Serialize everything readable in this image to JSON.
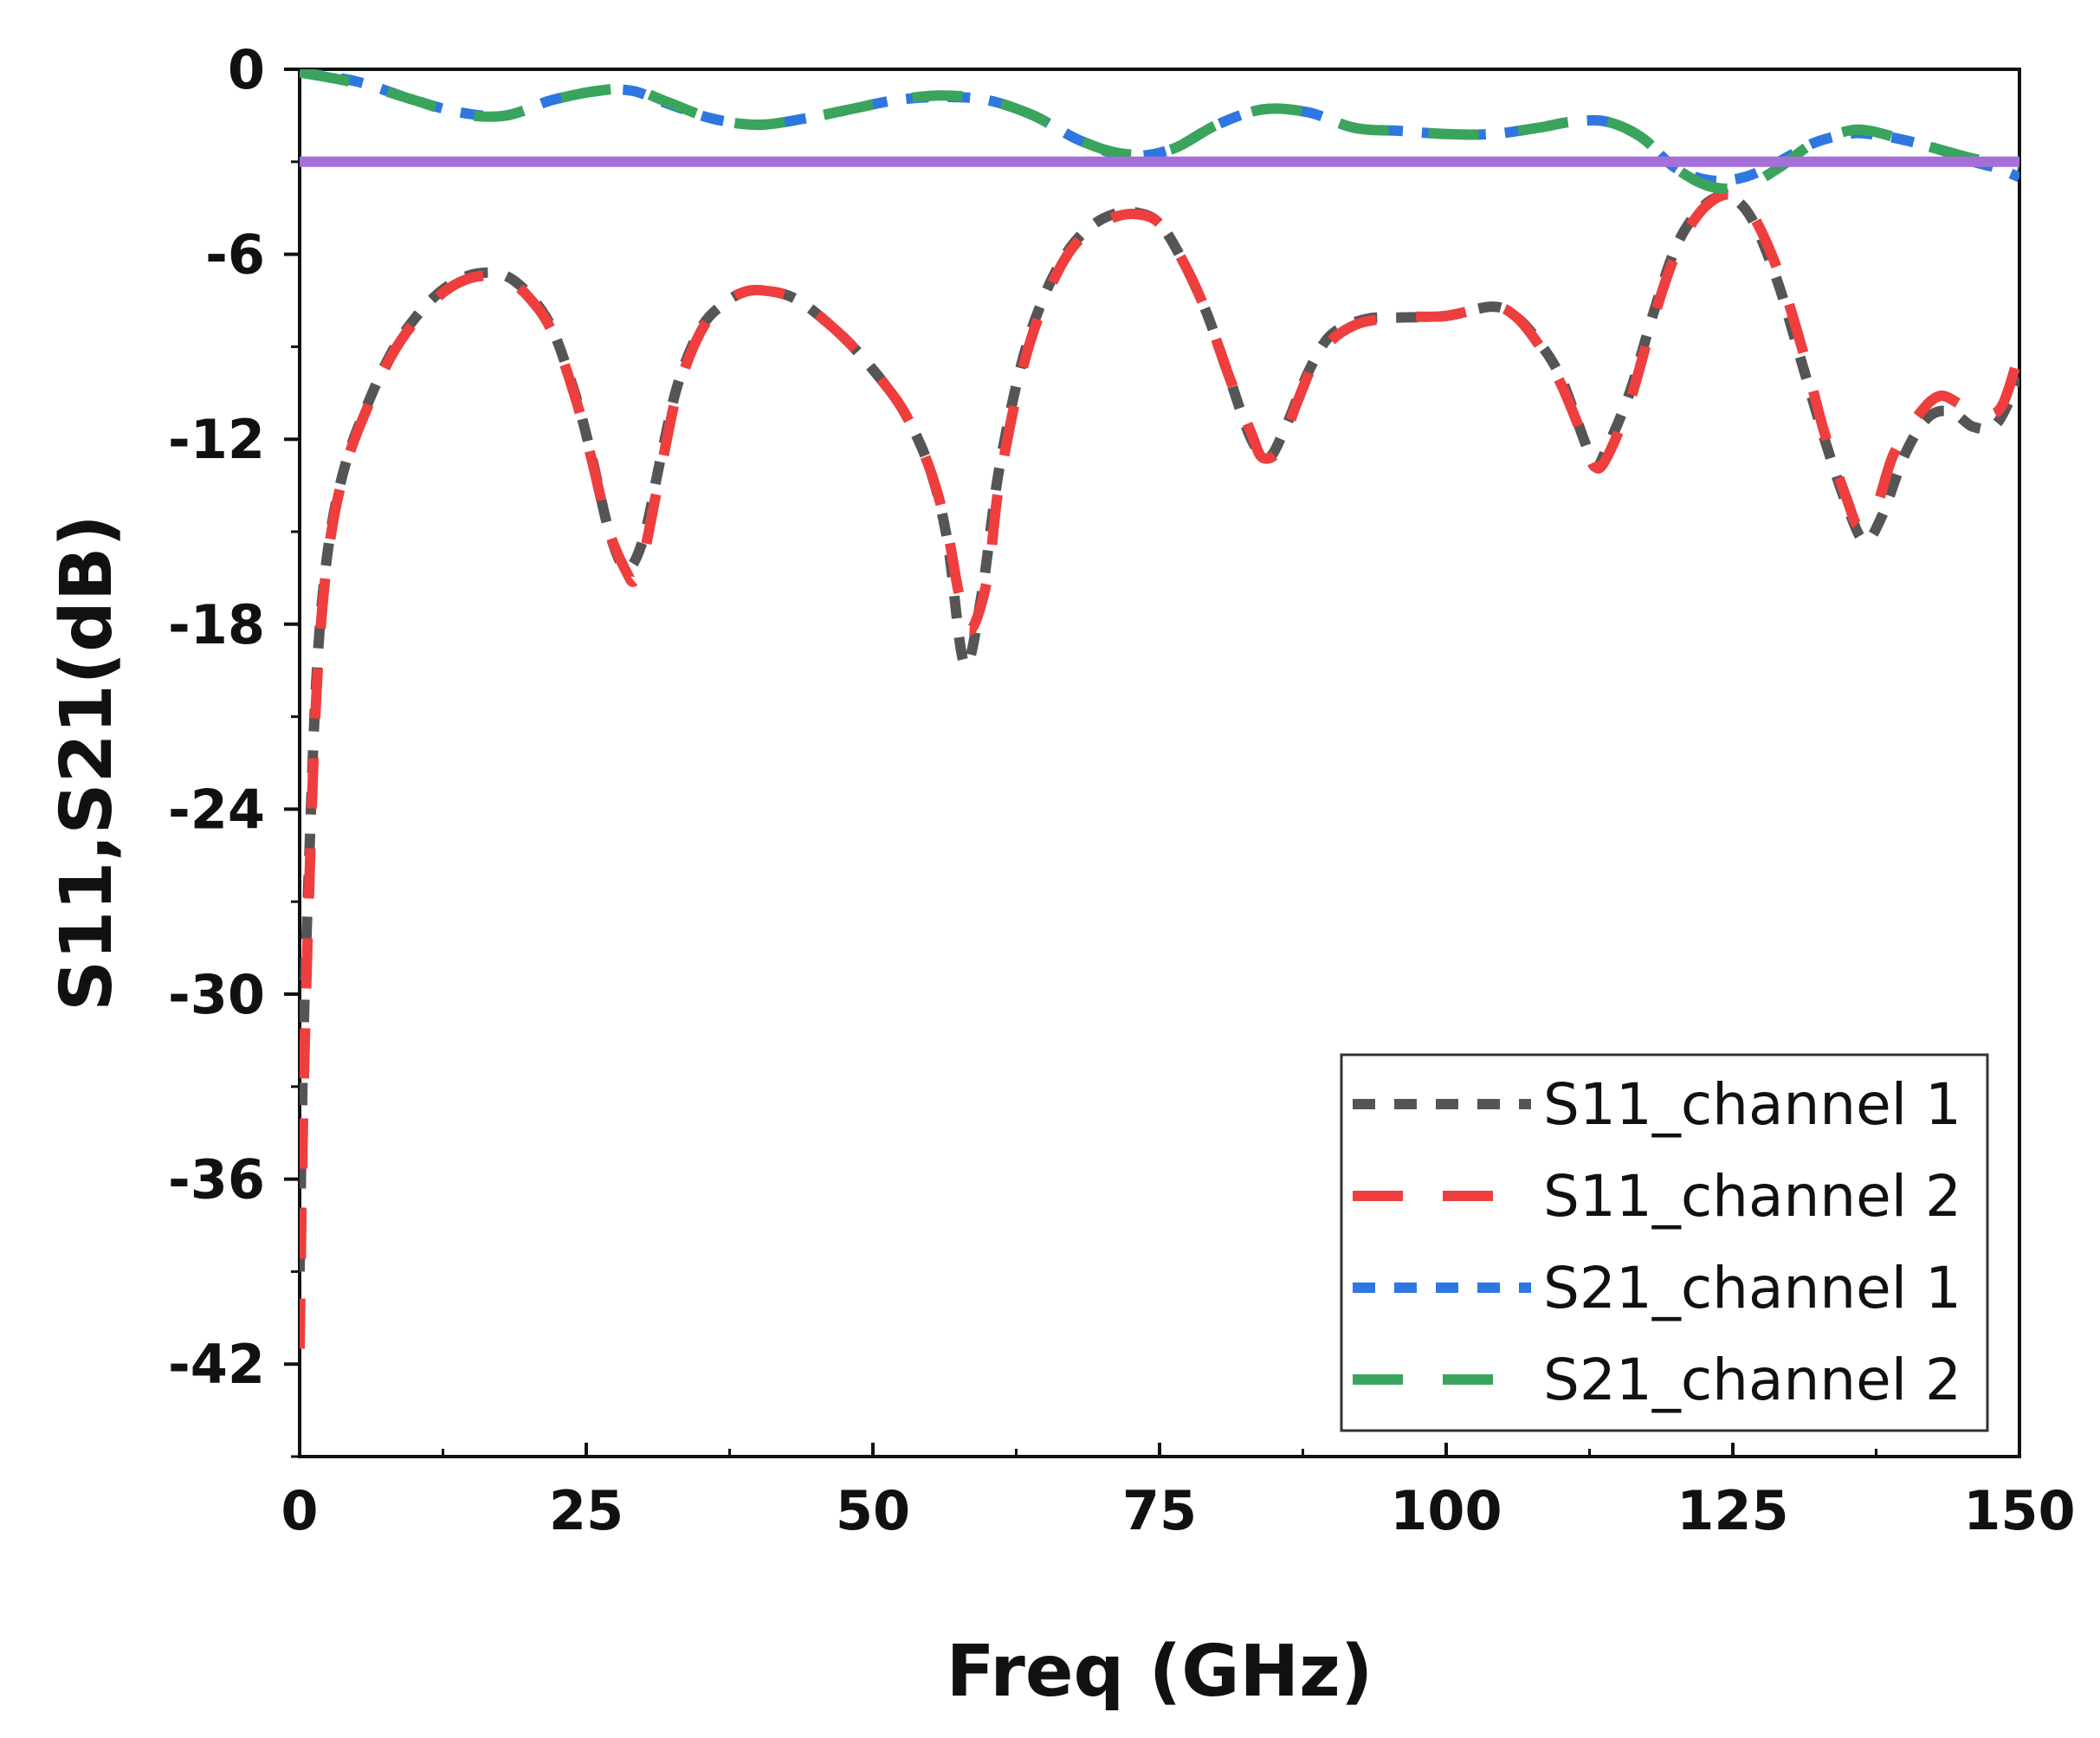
{
  "chart_data": {
    "type": "line",
    "title": "",
    "xlabel": "Freq (GHz)",
    "ylabel": "S11,S21(dB)",
    "xlim": [
      0,
      150
    ],
    "ylim": [
      -45,
      0
    ],
    "xticks": [
      0,
      25,
      50,
      75,
      100,
      125,
      150
    ],
    "xtick_labels": [
      "0",
      "25",
      "50",
      "75",
      "100",
      "125",
      "150"
    ],
    "yticks": [
      0,
      -6,
      -12,
      -18,
      -24,
      -30,
      -36,
      -42
    ],
    "ytick_labels": [
      "0",
      "-6",
      "-12",
      "-18",
      "-24",
      "-30",
      "-36",
      "-42"
    ],
    "grid": false,
    "legend_position": "bottom-right",
    "reference_line": {
      "y": -3,
      "color": "#a66fd8"
    },
    "series": [
      {
        "name": "S11_channel 1",
        "color": "#555555",
        "dash": "short",
        "x": [
          0,
          0.3,
          0.8,
          1.5,
          2.5,
          4,
          6,
          8,
          10,
          12,
          14,
          16,
          18,
          20,
          22,
          24,
          25.5,
          27,
          28.5,
          30,
          31.5,
          33,
          35,
          37,
          39,
          41,
          43,
          45,
          48,
          51,
          53,
          55,
          56.5,
          58,
          59.5,
          61,
          63,
          65,
          67,
          69,
          71,
          73,
          75,
          77,
          79,
          81,
          83,
          84.5,
          86,
          88,
          90,
          93,
          96,
          100,
          104,
          106,
          108,
          110,
          112,
          113,
          114,
          116,
          118,
          120,
          122,
          124,
          125.5,
          127,
          129,
          131,
          133,
          135,
          136.5,
          138,
          140,
          142,
          144,
          146,
          148,
          150
        ],
        "y": [
          -39,
          -32,
          -26,
          -19.5,
          -15.5,
          -12.8,
          -10.8,
          -9.2,
          -8.1,
          -7.3,
          -6.8,
          -6.6,
          -6.7,
          -7.3,
          -8.4,
          -10.5,
          -12.6,
          -15.0,
          -16.2,
          -15.2,
          -12.6,
          -10.2,
          -8.4,
          -7.6,
          -7.2,
          -7.2,
          -7.4,
          -7.9,
          -8.9,
          -10.2,
          -11.3,
          -13.0,
          -15.3,
          -19.3,
          -17.0,
          -13.0,
          -9.5,
          -7.3,
          -5.9,
          -5.1,
          -4.7,
          -4.65,
          -5.0,
          -6.2,
          -7.8,
          -9.9,
          -12.0,
          -12.6,
          -11.6,
          -9.8,
          -8.6,
          -8.1,
          -8.05,
          -8.0,
          -7.7,
          -8.0,
          -8.8,
          -10.0,
          -12.0,
          -12.9,
          -12.3,
          -10.5,
          -8.0,
          -5.8,
          -4.6,
          -4.1,
          -4.3,
          -5.1,
          -7.0,
          -9.5,
          -12.0,
          -14.2,
          -15.3,
          -14.5,
          -12.5,
          -11.3,
          -11.1,
          -11.6,
          -11.5,
          -10.0
        ]
      },
      {
        "name": "S11_channel 2",
        "color": "#ee3e3e",
        "dash": "long",
        "x": [
          0,
          0.3,
          0.8,
          1.5,
          2.5,
          4,
          6,
          8,
          10,
          12,
          14,
          16,
          18,
          20,
          22,
          24,
          25.5,
          27,
          28.5,
          29.2,
          30,
          31.5,
          33,
          35,
          37,
          39,
          41,
          43,
          45,
          48,
          51,
          53,
          55,
          56.5,
          57.5,
          58.5,
          60,
          61,
          63,
          65,
          67,
          69,
          71,
          73,
          75,
          77,
          79,
          81,
          83,
          84,
          85.5,
          87,
          89,
          92,
          96,
          100,
          104,
          106,
          108,
          110,
          112,
          113,
          114,
          116,
          118,
          120,
          122,
          124,
          125.5,
          127,
          129,
          131,
          133,
          135,
          136,
          137.5,
          139,
          141,
          143,
          145,
          147,
          148.5,
          150
        ],
        "y": [
          -41.5,
          -34,
          -27,
          -20,
          -15.7,
          -12.9,
          -10.9,
          -9.3,
          -8.2,
          -7.4,
          -6.9,
          -6.7,
          -6.8,
          -7.4,
          -8.5,
          -10.6,
          -12.7,
          -15.0,
          -16.3,
          -16.6,
          -15.8,
          -13.0,
          -10.4,
          -8.5,
          -7.6,
          -7.2,
          -7.2,
          -7.4,
          -7.9,
          -8.9,
          -10.2,
          -11.3,
          -13.0,
          -15.0,
          -17.0,
          -18.2,
          -16.5,
          -13.5,
          -9.8,
          -7.5,
          -6.0,
          -5.2,
          -4.8,
          -4.7,
          -5.0,
          -6.2,
          -7.8,
          -9.9,
          -11.8,
          -12.6,
          -12.3,
          -10.8,
          -9.2,
          -8.3,
          -8.05,
          -8.0,
          -7.7,
          -8.0,
          -8.9,
          -10.2,
          -12.0,
          -12.9,
          -12.6,
          -10.8,
          -8.2,
          -6.0,
          -4.7,
          -4.1,
          -4.2,
          -4.9,
          -6.6,
          -9.0,
          -11.8,
          -14.0,
          -14.8,
          -14.2,
          -12.5,
          -11.3,
          -10.6,
          -10.9,
          -11.2,
          -10.9,
          -9.2
        ]
      },
      {
        "name": "S21_channel 1",
        "color": "#2f77e0",
        "dash": "short",
        "x": [
          0,
          5,
          10,
          14,
          18,
          22,
          26,
          29,
          32,
          36,
          40,
          44,
          48,
          52,
          56,
          60,
          64,
          68,
          72,
          76,
          80,
          84,
          88,
          92,
          96,
          100,
          104,
          108,
          111,
          114,
          117,
          120,
          123,
          126,
          129,
          132,
          135,
          137,
          140,
          143,
          146,
          148,
          150
        ],
        "y": [
          -0.1,
          -0.4,
          -1.0,
          -1.4,
          -1.5,
          -1.0,
          -0.7,
          -0.7,
          -1.1,
          -1.6,
          -1.8,
          -1.6,
          -1.3,
          -1.0,
          -0.9,
          -1.0,
          -1.5,
          -2.3,
          -2.8,
          -2.6,
          -1.8,
          -1.3,
          -1.4,
          -1.9,
          -2.0,
          -2.1,
          -2.1,
          -1.9,
          -1.7,
          -1.7,
          -2.2,
          -3.2,
          -3.6,
          -3.5,
          -3.0,
          -2.4,
          -2.1,
          -2.1,
          -2.3,
          -2.6,
          -3.0,
          -3.2,
          -3.5
        ]
      },
      {
        "name": "S21_channel 2",
        "color": "#3aa45c",
        "dash": "long",
        "x": [
          0,
          5,
          10,
          14,
          18,
          22,
          26,
          29,
          32,
          36,
          40,
          44,
          48,
          52,
          56,
          60,
          64,
          68,
          72,
          76,
          80,
          84,
          88,
          92,
          96,
          100,
          104,
          108,
          111,
          114,
          117,
          120,
          123,
          126,
          129,
          132,
          135,
          137,
          140,
          143,
          146,
          148,
          150
        ],
        "y": [
          -0.1,
          -0.45,
          -1.0,
          -1.45,
          -1.5,
          -1.0,
          -0.7,
          -0.65,
          -1.05,
          -1.6,
          -1.8,
          -1.6,
          -1.3,
          -1.0,
          -0.85,
          -1.0,
          -1.5,
          -2.3,
          -2.75,
          -2.6,
          -1.8,
          -1.3,
          -1.4,
          -1.9,
          -2.0,
          -2.1,
          -2.1,
          -1.9,
          -1.7,
          -1.7,
          -2.2,
          -3.2,
          -3.8,
          -3.8,
          -3.2,
          -2.4,
          -2.0,
          -2.0,
          -2.3,
          -2.6,
          -2.9,
          -3.0,
          -3.1
        ]
      }
    ]
  }
}
